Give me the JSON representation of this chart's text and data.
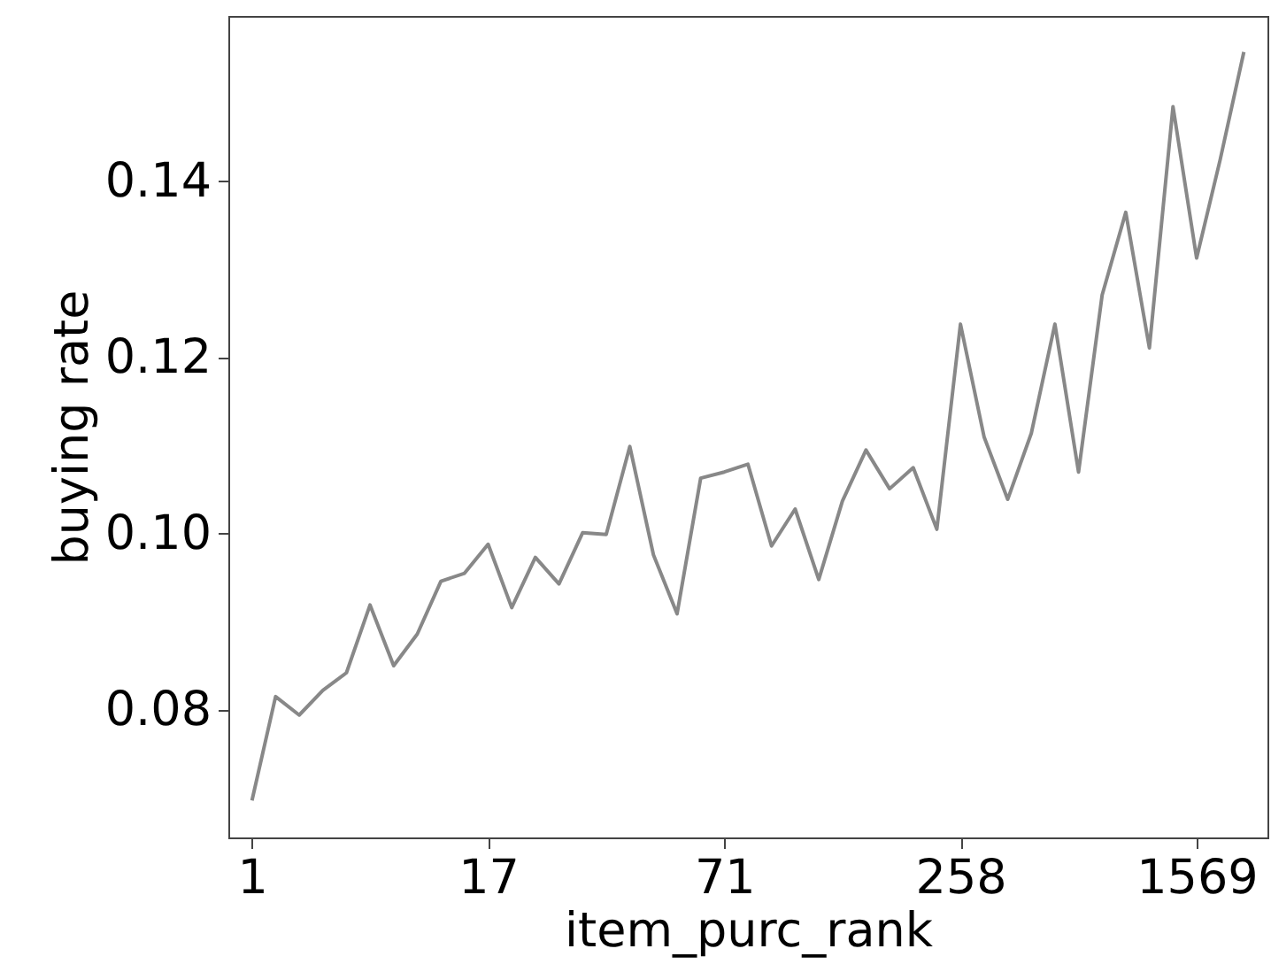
{
  "chart_data": {
    "type": "line",
    "xlabel": "item_purc_rank",
    "ylabel": "buying rate",
    "categories": [
      "1",
      null,
      null,
      null,
      null,
      null,
      null,
      null,
      null,
      null,
      "17",
      null,
      null,
      null,
      null,
      null,
      null,
      null,
      null,
      null,
      "71",
      null,
      null,
      null,
      null,
      null,
      null,
      null,
      null,
      null,
      "258",
      null,
      null,
      null,
      null,
      null,
      null,
      null,
      null,
      null,
      "1569",
      null,
      null
    ],
    "series": [
      {
        "color": "#888888",
        "values": [
          0.0697,
          0.0815,
          0.0794,
          0.0822,
          0.0842,
          0.0919,
          0.085,
          0.0886,
          0.0946,
          0.0955,
          0.0988,
          0.0916,
          0.0973,
          0.0943,
          0.1001,
          0.0999,
          0.1099,
          0.0976,
          0.0909,
          0.1063,
          0.107,
          0.1079,
          0.0986,
          0.1028,
          0.0948,
          0.1037,
          0.1095,
          0.1051,
          0.1075,
          0.1005,
          0.1238,
          0.111,
          0.1039,
          0.1114,
          0.1238,
          0.107,
          0.1271,
          0.1365,
          0.1211,
          0.1485,
          0.1313,
          0.1425,
          0.1547
        ]
      }
    ],
    "ylim": [
      0.0655,
      0.1588
    ],
    "yticks": [
      0.08,
      {
        "value": 0.1,
        "label": "0.10"
      },
      0.12,
      0.14
    ],
    "grid": false,
    "marker": "none",
    "line_style": "solid"
  }
}
